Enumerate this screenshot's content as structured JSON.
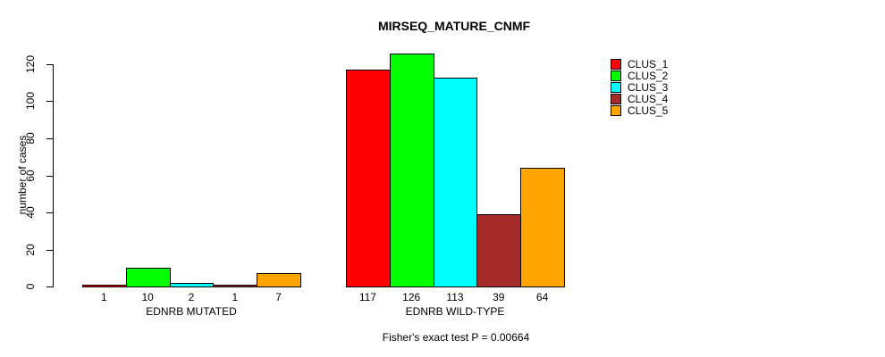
{
  "chart_data": {
    "type": "bar",
    "title": "MIRSEQ_MATURE_CNMF",
    "ylabel": "number of cases",
    "xlabel": "",
    "annotation": "Fisher's exact test P = 0.00664",
    "categories": [
      "EDNRB MUTATED",
      "EDNRB WILD-TYPE"
    ],
    "series": [
      {
        "name": "CLUS_1",
        "color": "#FF0000",
        "values": [
          1,
          117
        ]
      },
      {
        "name": "CLUS_2",
        "color": "#00FF00",
        "values": [
          10,
          126
        ]
      },
      {
        "name": "CLUS_3",
        "color": "#00FFFF",
        "values": [
          2,
          113
        ]
      },
      {
        "name": "CLUS_4",
        "color": "#A52A2A",
        "values": [
          1,
          39
        ]
      },
      {
        "name": "CLUS_5",
        "color": "#FFA500",
        "values": [
          7,
          64
        ]
      }
    ],
    "ylim": [
      0,
      120
    ],
    "yticks": [
      0,
      20,
      40,
      60,
      80,
      100,
      120
    ],
    "bar_value_labels_shown": true,
    "grid": false,
    "legend_position": "right",
    "background_color": "#FFFFFF",
    "bar_border_color": "#000000"
  }
}
